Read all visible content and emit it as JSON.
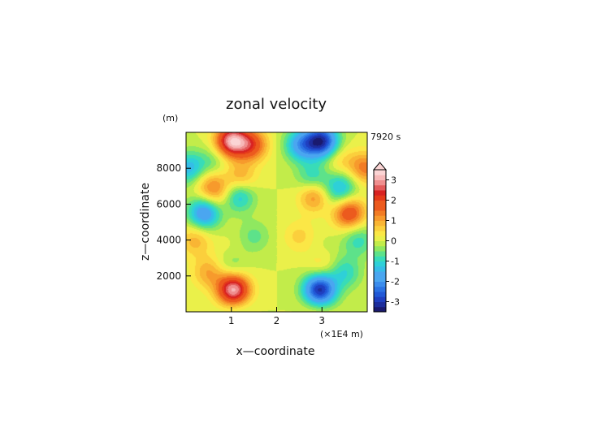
{
  "chart_data": {
    "type": "contour",
    "title": "zonal velocity",
    "xlabel": "x—coordinate",
    "ylabel": "z—coordinate",
    "x_unit": "(×1E4 m)",
    "y_unit": "(m)",
    "time_label": "7920 s",
    "xlim": [
      0,
      4.0
    ],
    "ylim": [
      0,
      10000
    ],
    "x_ticks": [
      1,
      2,
      3
    ],
    "y_ticks": [
      2000,
      4000,
      6000,
      8000
    ],
    "colorbar": {
      "ticks": [
        -3,
        -2,
        -1,
        0,
        1,
        2,
        3
      ],
      "levels": [
        -3.5,
        -3.25,
        -3,
        -2.75,
        -2.5,
        -2.25,
        -2,
        -1.75,
        -1.5,
        -1.25,
        -1,
        -0.75,
        -0.5,
        -0.25,
        0,
        0.25,
        0.5,
        0.75,
        1,
        1.25,
        1.5,
        1.75,
        2,
        2.25,
        2.5,
        2.75,
        3,
        3.25,
        3.5
      ],
      "extend": "max"
    },
    "features": [
      {
        "x": 1.0,
        "z": 9500,
        "u": 3.0
      },
      {
        "x": 1.45,
        "z": 9300,
        "u": 1.8
      },
      {
        "x": 0.55,
        "z": 7000,
        "u": 1.1
      },
      {
        "x": 1.2,
        "z": 7400,
        "u": 1.1
      },
      {
        "x": 1.0,
        "z": 3000,
        "u": 1.0
      },
      {
        "x": 0.5,
        "z": 2200,
        "u": 1.0
      },
      {
        "x": 1.05,
        "z": 1200,
        "u": 3.2
      },
      {
        "x": 0.2,
        "z": 4000,
        "u": 0.9
      },
      {
        "x": 0.75,
        "z": 6500,
        "u": 0.6
      },
      {
        "x": 3.0,
        "z": 9500,
        "u": -3.0
      },
      {
        "x": 2.55,
        "z": 9300,
        "u": -1.8
      },
      {
        "x": 3.45,
        "z": 7000,
        "u": -1.1
      },
      {
        "x": 2.8,
        "z": 7400,
        "u": -1.1
      },
      {
        "x": 3.0,
        "z": 3000,
        "u": -1.0
      },
      {
        "x": 3.5,
        "z": 2200,
        "u": -1.0
      },
      {
        "x": 2.95,
        "z": 1200,
        "u": -3.2
      },
      {
        "x": 3.8,
        "z": 4000,
        "u": -0.9
      },
      {
        "x": 3.25,
        "z": 6500,
        "u": -0.6
      },
      {
        "x": 0.4,
        "z": 5500,
        "u": -2.0
      },
      {
        "x": 1.15,
        "z": 6500,
        "u": -1.5
      },
      {
        "x": 0.6,
        "z": 8400,
        "u": -0.6
      },
      {
        "x": 0.05,
        "z": 8000,
        "u": -1.4
      },
      {
        "x": 1.0,
        "z": 2800,
        "u": -1.4
      },
      {
        "x": 1.1,
        "z": 300,
        "u": -0.4
      },
      {
        "x": 1.5,
        "z": 4200,
        "u": -0.6
      },
      {
        "x": 3.6,
        "z": 5500,
        "u": 2.0
      },
      {
        "x": 2.85,
        "z": 6500,
        "u": 1.5
      },
      {
        "x": 3.4,
        "z": 8400,
        "u": 0.6
      },
      {
        "x": 3.95,
        "z": 8000,
        "u": 1.4
      },
      {
        "x": 3.0,
        "z": 2800,
        "u": 1.4
      },
      {
        "x": 2.9,
        "z": 300,
        "u": 0.4
      },
      {
        "x": 2.5,
        "z": 4200,
        "u": 0.6
      }
    ]
  }
}
